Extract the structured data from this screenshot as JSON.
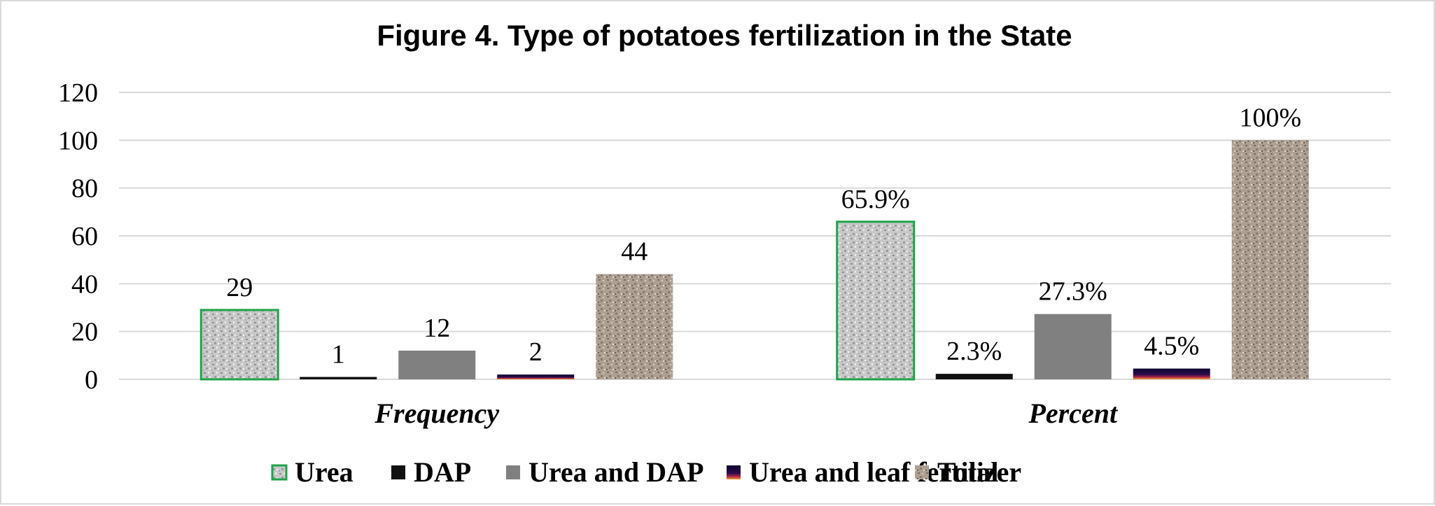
{
  "chart_data": {
    "type": "bar",
    "title": "Figure 4. Type of potatoes fertilization in the State",
    "categories": [
      "Frequency",
      "Percent"
    ],
    "series": [
      {
        "name": "Urea",
        "values": [
          29,
          65.9
        ],
        "labels": [
          "29",
          "65.9%"
        ],
        "color": "#c9c9c9",
        "border": "#1fa34a",
        "pattern": "gray-speckle"
      },
      {
        "name": "DAP",
        "values": [
          1,
          2.3
        ],
        "labels": [
          "1",
          "2.3%"
        ],
        "color": "#111111",
        "border": "",
        "pattern": "solid"
      },
      {
        "name": "Urea and DAP",
        "values": [
          12,
          27.3
        ],
        "labels": [
          "12",
          "27.3%"
        ],
        "color": "#808080",
        "border": "",
        "pattern": "solid"
      },
      {
        "name": "Urea and leaf fertilizer",
        "values": [
          2,
          4.5
        ],
        "labels": [
          "2",
          "4.5%"
        ],
        "color": "#1a0a3a",
        "border": "",
        "pattern": "dark-gradient"
      },
      {
        "name": "Total",
        "values": [
          44,
          100
        ],
        "labels": [
          "44",
          "100%"
        ],
        "color": "#a99a8a",
        "border": "",
        "pattern": "brown-speckle"
      }
    ],
    "yticks": [
      "0",
      "20",
      "40",
      "60",
      "80",
      "100",
      "120"
    ],
    "ylim": [
      0,
      120
    ],
    "grid": true,
    "legend": "bottom"
  }
}
